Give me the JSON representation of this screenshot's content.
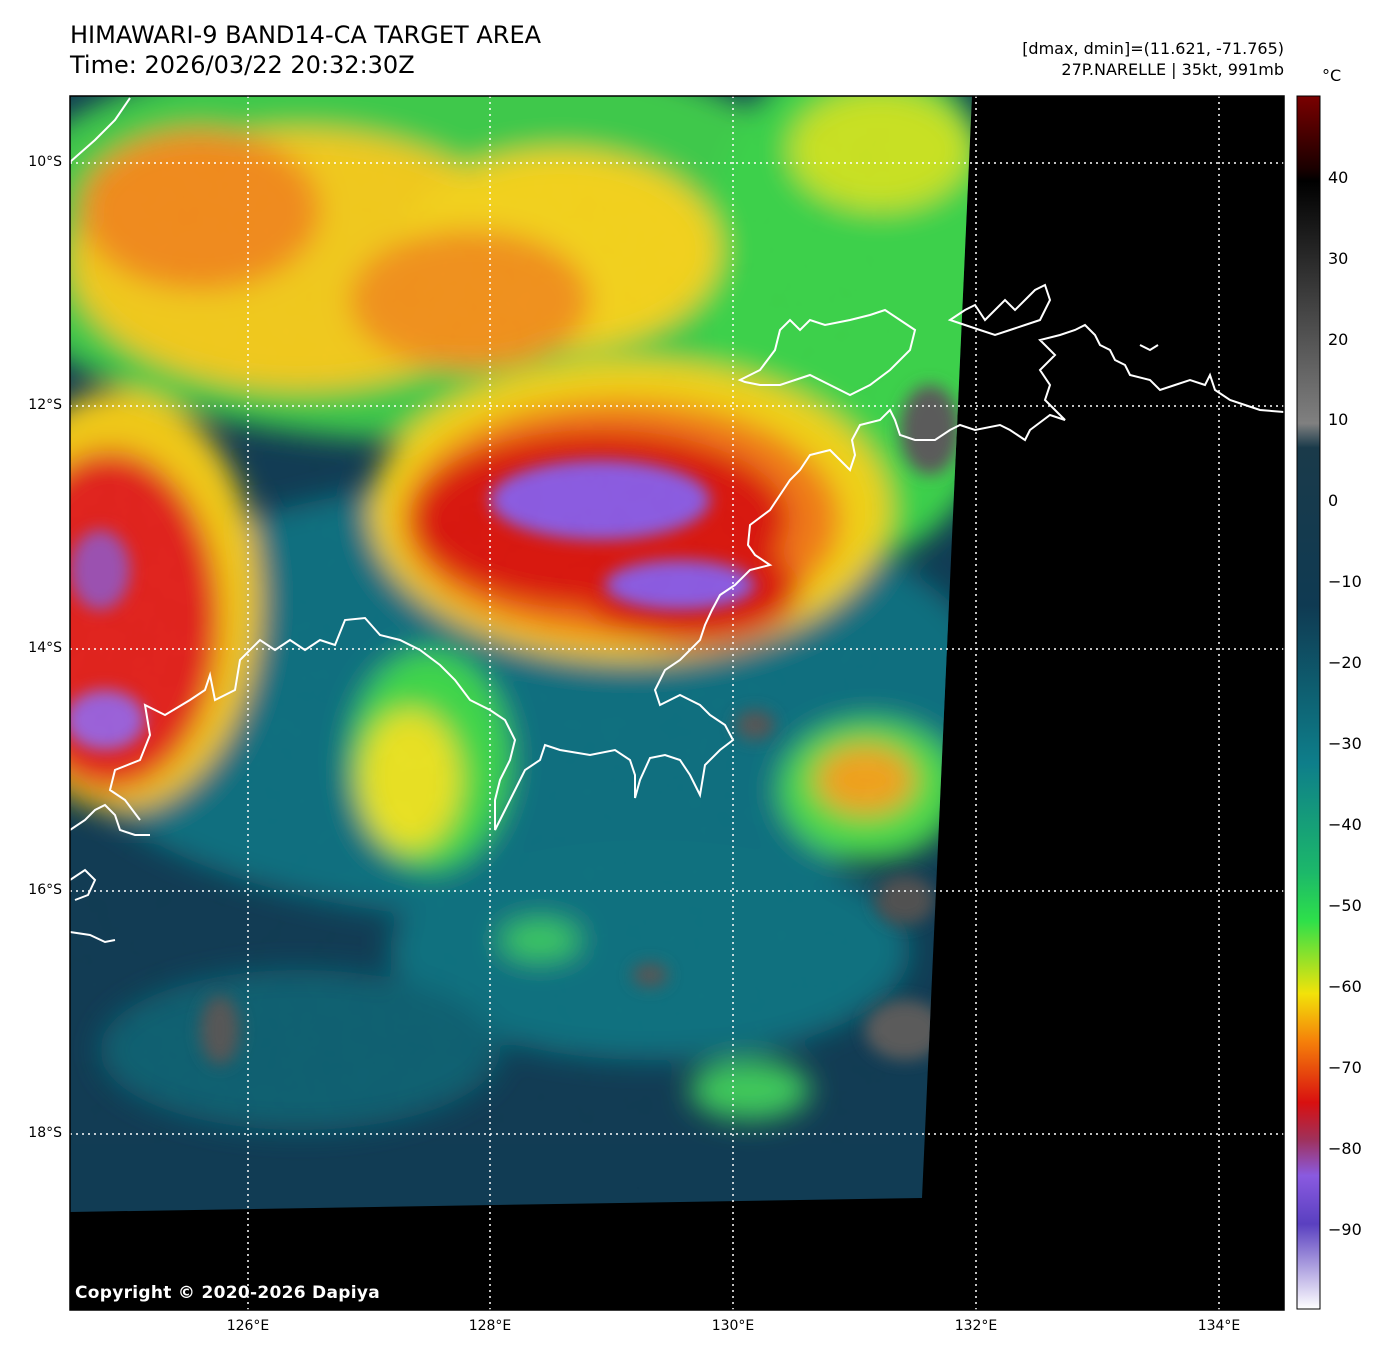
{
  "header": {
    "title": "HIMAWARI-9 BAND14-CA TARGET AREA",
    "time": "Time: 2026/03/22 20:32:30Z",
    "range": "[dmax, dmin]=(11.621, -71.765)",
    "storm": "27P.NARELLE | 35kt, 991mb"
  },
  "map": {
    "lat_labels": [
      "10°S",
      "12°S",
      "14°S",
      "16°S",
      "18°S"
    ],
    "lon_labels": [
      "126°E",
      "128°E",
      "130°E",
      "132°E",
      "134°E"
    ],
    "copyright": "Copyright © 2020-2026 Dapiya"
  },
  "colorbar": {
    "unit": "°C",
    "ticks": [
      "40",
      "30",
      "20",
      "10",
      "0",
      "−10",
      "−20",
      "−30",
      "−40",
      "−50",
      "−60",
      "−70",
      "−80",
      "−90"
    ],
    "colors": {
      "hot": "#7a0000",
      "black": "#000000",
      "gray": "#808080",
      "navy": "#0f3a52",
      "teal": "#0e7e8a",
      "green": "#2ee04a",
      "yellow": "#f2e20a",
      "orange": "#f57f0a",
      "red": "#d81010",
      "purple": "#8a5ae0",
      "white": "#ffffff"
    }
  },
  "palette": {
    "background": "#ffffff",
    "no_data": "#000000",
    "coastline": "#ffffff",
    "gridline": "#ffffff"
  }
}
